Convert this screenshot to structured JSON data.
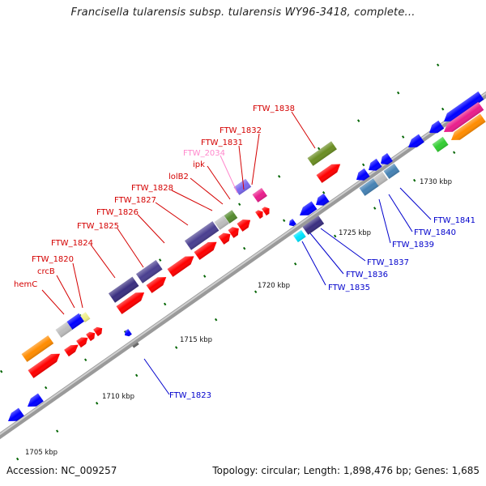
{
  "title": "Francisella tularensis subsp. tularensis WY96-3418, complete...",
  "footer": {
    "accession": "Accession: NC_009257",
    "summary": "Topology: circular; Length: 1,898,476 bp; Genes: 1,685"
  },
  "colors": {
    "forward_label": "#d40000",
    "reverse_label": "#0000cc",
    "pseudo_label": "#ff88cc",
    "backbone": "#9a9a9a",
    "tick": "#006400"
  },
  "scale_labels": [
    "1705 kbp",
    "1710 kbp",
    "1715 kbp",
    "1720 kbp",
    "1725 kbp",
    "1730 kbp"
  ],
  "forward_gene_labels": [
    "hemC",
    "crcB",
    "FTW_1820",
    "FTW_1824",
    "FTW_1825",
    "FTW_1826",
    "FTW_1827",
    "FTW_1828",
    "lolB2",
    "ipk",
    "FTW_2034",
    "FTW_1831",
    "FTW_1832",
    "FTW_1838"
  ],
  "reverse_gene_labels": [
    "FTW_1823",
    "FTW_1835",
    "FTW_1836",
    "FTW_1837",
    "FTW_1839",
    "FTW_1840",
    "FTW_1841"
  ]
}
